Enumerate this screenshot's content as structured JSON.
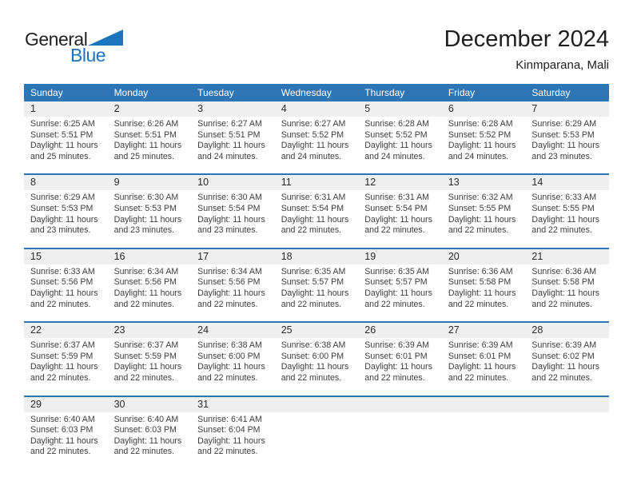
{
  "logo": {
    "line1": "General",
    "line2": "Blue"
  },
  "header": {
    "title": "December 2024",
    "location": "Kinmparana, Mali"
  },
  "labels": {
    "sunrise": "Sunrise:",
    "sunset": "Sunset:",
    "daylight": "Daylight:"
  },
  "day_headers": [
    "Sunday",
    "Monday",
    "Tuesday",
    "Wednesday",
    "Thursday",
    "Friday",
    "Saturday"
  ],
  "colors": {
    "header_blue": "#2E75B6",
    "strip_gray": "#EFEFEF",
    "logo_blue": "#1B75BC"
  },
  "weeks": [
    [
      {
        "day": "1",
        "sunrise": "6:25 AM",
        "sunset": "5:51 PM",
        "daylight": "11 hours and 25 minutes."
      },
      {
        "day": "2",
        "sunrise": "6:26 AM",
        "sunset": "5:51 PM",
        "daylight": "11 hours and 25 minutes."
      },
      {
        "day": "3",
        "sunrise": "6:27 AM",
        "sunset": "5:51 PM",
        "daylight": "11 hours and 24 minutes."
      },
      {
        "day": "4",
        "sunrise": "6:27 AM",
        "sunset": "5:52 PM",
        "daylight": "11 hours and 24 minutes."
      },
      {
        "day": "5",
        "sunrise": "6:28 AM",
        "sunset": "5:52 PM",
        "daylight": "11 hours and 24 minutes."
      },
      {
        "day": "6",
        "sunrise": "6:28 AM",
        "sunset": "5:52 PM",
        "daylight": "11 hours and 24 minutes."
      },
      {
        "day": "7",
        "sunrise": "6:29 AM",
        "sunset": "5:53 PM",
        "daylight": "11 hours and 23 minutes."
      }
    ],
    [
      {
        "day": "8",
        "sunrise": "6:29 AM",
        "sunset": "5:53 PM",
        "daylight": "11 hours and 23 minutes."
      },
      {
        "day": "9",
        "sunrise": "6:30 AM",
        "sunset": "5:53 PM",
        "daylight": "11 hours and 23 minutes."
      },
      {
        "day": "10",
        "sunrise": "6:30 AM",
        "sunset": "5:54 PM",
        "daylight": "11 hours and 23 minutes."
      },
      {
        "day": "11",
        "sunrise": "6:31 AM",
        "sunset": "5:54 PM",
        "daylight": "11 hours and 22 minutes."
      },
      {
        "day": "12",
        "sunrise": "6:31 AM",
        "sunset": "5:54 PM",
        "daylight": "11 hours and 22 minutes."
      },
      {
        "day": "13",
        "sunrise": "6:32 AM",
        "sunset": "5:55 PM",
        "daylight": "11 hours and 22 minutes."
      },
      {
        "day": "14",
        "sunrise": "6:33 AM",
        "sunset": "5:55 PM",
        "daylight": "11 hours and 22 minutes."
      }
    ],
    [
      {
        "day": "15",
        "sunrise": "6:33 AM",
        "sunset": "5:56 PM",
        "daylight": "11 hours and 22 minutes."
      },
      {
        "day": "16",
        "sunrise": "6:34 AM",
        "sunset": "5:56 PM",
        "daylight": "11 hours and 22 minutes."
      },
      {
        "day": "17",
        "sunrise": "6:34 AM",
        "sunset": "5:56 PM",
        "daylight": "11 hours and 22 minutes."
      },
      {
        "day": "18",
        "sunrise": "6:35 AM",
        "sunset": "5:57 PM",
        "daylight": "11 hours and 22 minutes."
      },
      {
        "day": "19",
        "sunrise": "6:35 AM",
        "sunset": "5:57 PM",
        "daylight": "11 hours and 22 minutes."
      },
      {
        "day": "20",
        "sunrise": "6:36 AM",
        "sunset": "5:58 PM",
        "daylight": "11 hours and 22 minutes."
      },
      {
        "day": "21",
        "sunrise": "6:36 AM",
        "sunset": "5:58 PM",
        "daylight": "11 hours and 22 minutes."
      }
    ],
    [
      {
        "day": "22",
        "sunrise": "6:37 AM",
        "sunset": "5:59 PM",
        "daylight": "11 hours and 22 minutes."
      },
      {
        "day": "23",
        "sunrise": "6:37 AM",
        "sunset": "5:59 PM",
        "daylight": "11 hours and 22 minutes."
      },
      {
        "day": "24",
        "sunrise": "6:38 AM",
        "sunset": "6:00 PM",
        "daylight": "11 hours and 22 minutes."
      },
      {
        "day": "25",
        "sunrise": "6:38 AM",
        "sunset": "6:00 PM",
        "daylight": "11 hours and 22 minutes."
      },
      {
        "day": "26",
        "sunrise": "6:39 AM",
        "sunset": "6:01 PM",
        "daylight": "11 hours and 22 minutes."
      },
      {
        "day": "27",
        "sunrise": "6:39 AM",
        "sunset": "6:01 PM",
        "daylight": "11 hours and 22 minutes."
      },
      {
        "day": "28",
        "sunrise": "6:39 AM",
        "sunset": "6:02 PM",
        "daylight": "11 hours and 22 minutes."
      }
    ],
    [
      {
        "day": "29",
        "sunrise": "6:40 AM",
        "sunset": "6:03 PM",
        "daylight": "11 hours and 22 minutes."
      },
      {
        "day": "30",
        "sunrise": "6:40 AM",
        "sunset": "6:03 PM",
        "daylight": "11 hours and 22 minutes."
      },
      {
        "day": "31",
        "sunrise": "6:41 AM",
        "sunset": "6:04 PM",
        "daylight": "11 hours and 22 minutes."
      },
      null,
      null,
      null,
      null
    ]
  ]
}
